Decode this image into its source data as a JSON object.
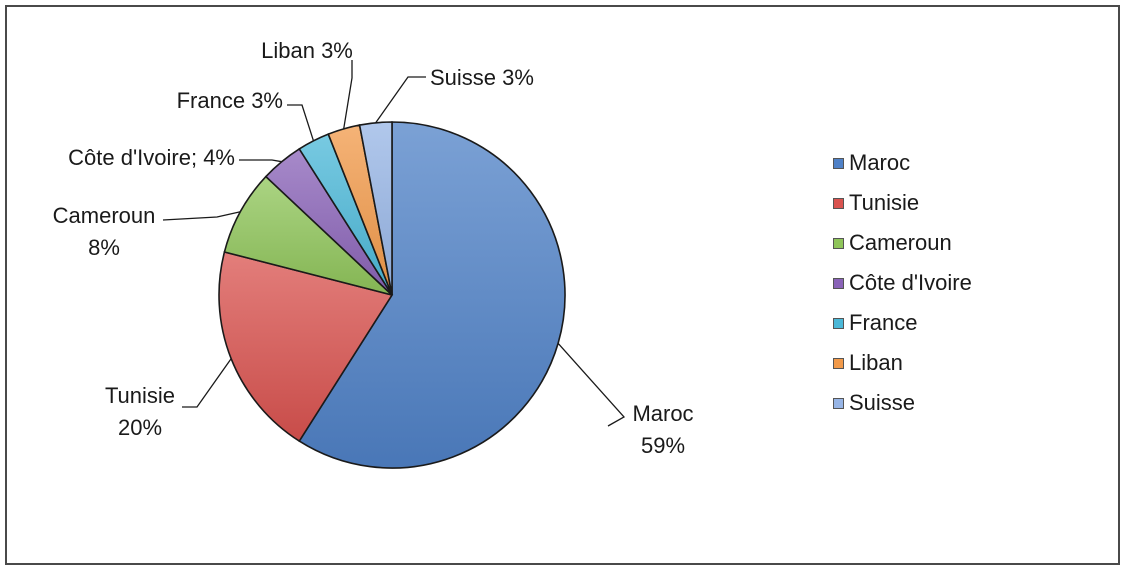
{
  "chart_data": {
    "type": "pie",
    "title": "",
    "categories": [
      "Maroc",
      "Tunisie",
      "Cameroun",
      "Côte d'Ivoire",
      "France",
      "Liban",
      "Suisse"
    ],
    "values": [
      59,
      20,
      8,
      4,
      3,
      3,
      3
    ],
    "data_labels": [
      [
        "Maroc",
        "59%"
      ],
      [
        "Tunisie",
        "20%"
      ],
      [
        "Cameroun",
        "8%"
      ],
      [
        "Côte d'Ivoire; 4%"
      ],
      [
        "France 3%"
      ],
      [
        "Liban 3%"
      ],
      [
        "Suisse 3%"
      ]
    ],
    "colors": [
      "#4f81c7",
      "#d9534f",
      "#8fc55a",
      "#8a63b8",
      "#4bb8d8",
      "#f29a4a",
      "#97b5e6"
    ],
    "legend": {
      "position": "right",
      "entries": [
        "Maroc",
        "Tunisie",
        "Cameroun",
        "Côte d'Ivoire",
        "France",
        "Liban",
        "Suisse"
      ]
    }
  }
}
